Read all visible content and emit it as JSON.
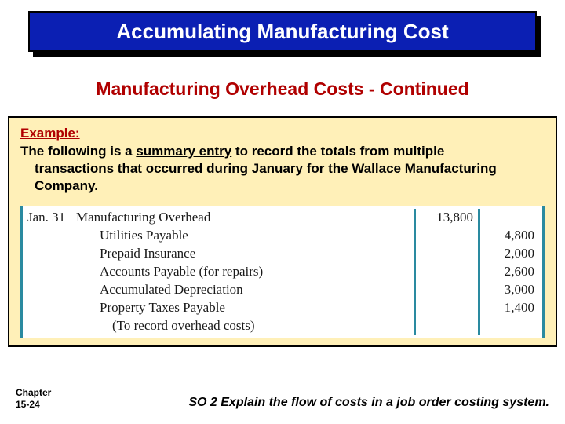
{
  "title": "Accumulating Manufacturing Cost",
  "subtitle": "Manufacturing Overhead Costs - Continued",
  "example": {
    "label": "Example:",
    "line1": "The following is a ",
    "summary": "summary entry",
    "line1b": " to record the totals from multiple",
    "line2": "transactions that occurred during January for the Wallace Manufacturing",
    "line3": "Company."
  },
  "journal": {
    "date": "Jan. 31",
    "debit_account": "Manufacturing Overhead",
    "debit_amount": "13,800",
    "credits": [
      {
        "account": "Utilities Payable",
        "amount": "4,800"
      },
      {
        "account": "Prepaid Insurance",
        "amount": "2,000"
      },
      {
        "account": "Accounts Payable (for repairs)",
        "amount": "2,600"
      },
      {
        "account": "Accumulated Depreciation",
        "amount": "3,000"
      },
      {
        "account": "Property Taxes Payable",
        "amount": "1,400"
      }
    ],
    "memo": "(To record overhead costs)"
  },
  "footer": {
    "chapter_a": "Chapter",
    "chapter_b": "15-24",
    "so": "SO 2  Explain the flow of costs in a job order costing system."
  },
  "colors": {
    "title_bg": "#0b1fb3",
    "title_text": "#ffffff",
    "subtitle": "#b00000",
    "example_bg": "#fff0b8",
    "rule": "#2a8aa0"
  }
}
